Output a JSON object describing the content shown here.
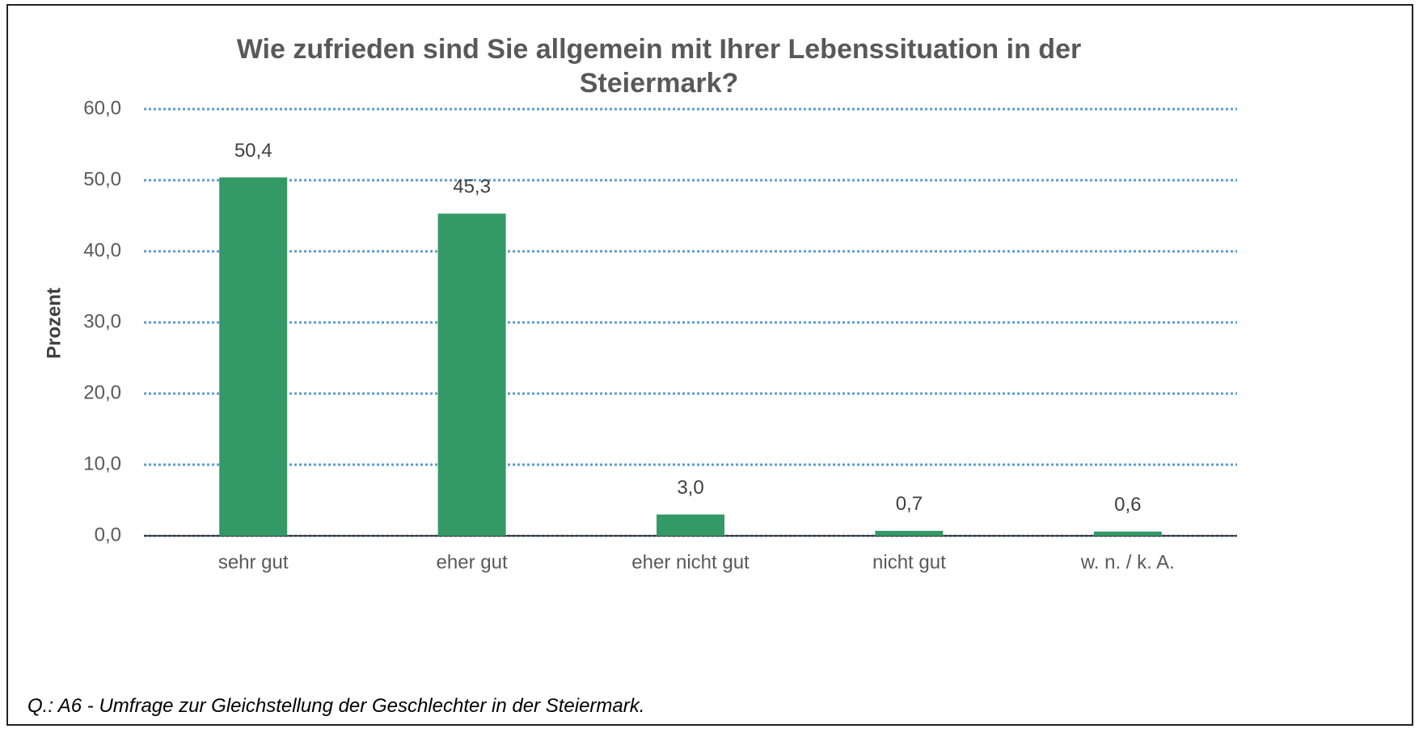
{
  "chart_data": {
    "type": "bar",
    "title": "Wie zufrieden sind Sie allgemein mit Ihrer Lebenssituation in der Steiermark?",
    "y_label": "Prozent",
    "source": "Q.: A6 - Umfrage zur Gleichstellung der Geschlechter in der Steiermark.",
    "categories": [
      "sehr gut",
      "eher gut",
      "eher nicht gut",
      "nicht gut",
      "w. n. / k. A."
    ],
    "values": [
      50.4,
      45.3,
      3.0,
      0.7,
      0.6
    ],
    "value_labels": [
      "50,4",
      "45,3",
      "3,0",
      "0,7",
      "0,6"
    ],
    "color": "#339966",
    "ylim": [
      0,
      60
    ],
    "yticks": [
      {
        "value": 0,
        "label": "0,0"
      },
      {
        "value": 10,
        "label": "10,0"
      },
      {
        "value": 20,
        "label": "20,0"
      },
      {
        "value": 30,
        "label": "30,0"
      },
      {
        "value": 40,
        "label": "40,0"
      },
      {
        "value": 50,
        "label": "50,0"
      },
      {
        "value": 60,
        "label": "60,0"
      }
    ],
    "grid": true,
    "grid_color": "#5b9bd5"
  }
}
